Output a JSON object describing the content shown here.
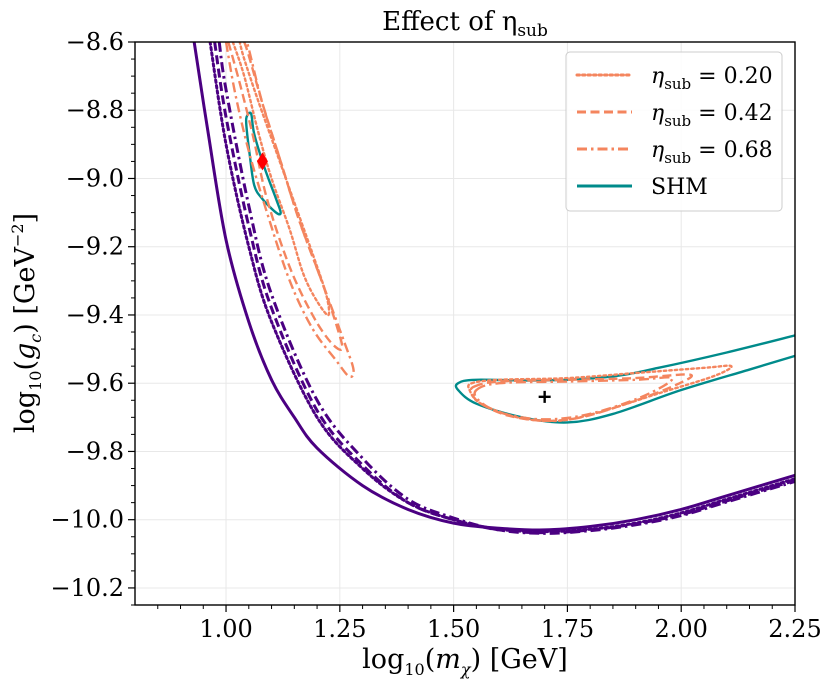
{
  "chart_data": {
    "type": "line",
    "title": "Effect of η",
    "title_sub": "sub",
    "xlabel": {
      "pre": "log",
      "pre_sub": "10",
      "open": "(",
      "var": "m",
      "var_sub": "χ",
      "close": ") [GeV]"
    },
    "ylabel": {
      "pre": "log",
      "pre_sub": "10",
      "open": "(",
      "var": "g",
      "var_sub": "c",
      "close": ") [GeV",
      "exp": "−2",
      "end": "]"
    },
    "xlim": [
      0.8,
      2.25
    ],
    "ylim": [
      -10.25,
      -8.6
    ],
    "xticks": [
      1.0,
      1.25,
      1.5,
      1.75,
      2.0,
      2.25
    ],
    "xtick_labels": [
      "1.00",
      "1.25",
      "1.50",
      "1.75",
      "2.00",
      "2.25"
    ],
    "yticks": [
      -10.2,
      -10.0,
      -9.8,
      -9.6,
      -9.4,
      -9.2,
      -9.0,
      -8.8,
      -8.6
    ],
    "ytick_labels": [
      "−10.2",
      "−10.0",
      "−9.8",
      "−9.6",
      "−9.4",
      "−9.2",
      "−9.0",
      "−8.8",
      "−8.6"
    ],
    "grid": true,
    "legend_position": "top-right",
    "legend": [
      {
        "label_var": "η",
        "label_sub": "sub",
        "label_rest": " = 0.20",
        "color": "#f4855e",
        "dash": "dotted"
      },
      {
        "label_var": "η",
        "label_sub": "sub",
        "label_rest": " = 0.42",
        "color": "#f4855e",
        "dash": "dashed"
      },
      {
        "label_var": "η",
        "label_sub": "sub",
        "label_rest": " = 0.68",
        "color": "#f4855e",
        "dash": "dashdot"
      },
      {
        "label_var": "",
        "label_sub": "",
        "label_rest": "SHM",
        "color": "#008b8b",
        "dash": "solid"
      }
    ],
    "colors": {
      "shm_contour": "#008b8b",
      "eta_contour": "#f4855e",
      "limit": "#4b0082",
      "diamond": "#ff0000",
      "cross": "#000000"
    },
    "markers": [
      {
        "name": "diamond",
        "x": 1.08,
        "y": -8.95
      },
      {
        "name": "cross",
        "x": 1.7,
        "y": -9.64
      }
    ],
    "series": [
      {
        "name": "SHM exclusion limit",
        "color": "#4b0082",
        "dash": "solid",
        "width": 3,
        "points": [
          [
            0.93,
            -8.6
          ],
          [
            0.96,
            -8.86
          ],
          [
            1.0,
            -9.18
          ],
          [
            1.05,
            -9.42
          ],
          [
            1.1,
            -9.59
          ],
          [
            1.15,
            -9.7
          ],
          [
            1.2,
            -9.79
          ],
          [
            1.3,
            -9.9
          ],
          [
            1.4,
            -9.97
          ],
          [
            1.5,
            -10.01
          ],
          [
            1.6,
            -10.025
          ],
          [
            1.7,
            -10.03
          ],
          [
            1.8,
            -10.02
          ],
          [
            1.9,
            -10.0
          ],
          [
            2.0,
            -9.97
          ],
          [
            2.1,
            -9.93
          ],
          [
            2.25,
            -9.87
          ]
        ]
      },
      {
        "name": "η_sub = 0.20 exclusion limit",
        "color": "#4b0082",
        "dash": "dotted",
        "width": 3,
        "points": [
          [
            0.965,
            -8.6
          ],
          [
            1.0,
            -8.9
          ],
          [
            1.05,
            -9.2
          ],
          [
            1.1,
            -9.42
          ],
          [
            1.2,
            -9.7
          ],
          [
            1.3,
            -9.85
          ],
          [
            1.4,
            -9.95
          ],
          [
            1.5,
            -10.0
          ],
          [
            1.6,
            -10.028
          ],
          [
            1.7,
            -10.035
          ],
          [
            1.8,
            -10.028
          ],
          [
            1.9,
            -10.01
          ],
          [
            2.0,
            -9.98
          ],
          [
            2.1,
            -9.94
          ],
          [
            2.25,
            -9.88
          ]
        ]
      },
      {
        "name": "η_sub = 0.42 exclusion limit",
        "color": "#4b0082",
        "dash": "dashed",
        "width": 3,
        "points": [
          [
            0.975,
            -8.6
          ],
          [
            1.0,
            -8.82
          ],
          [
            1.05,
            -9.14
          ],
          [
            1.1,
            -9.38
          ],
          [
            1.2,
            -9.68
          ],
          [
            1.3,
            -9.84
          ],
          [
            1.4,
            -9.95
          ],
          [
            1.5,
            -10.0
          ],
          [
            1.6,
            -10.03
          ],
          [
            1.7,
            -10.038
          ],
          [
            1.8,
            -10.03
          ],
          [
            1.9,
            -10.012
          ],
          [
            2.0,
            -9.985
          ],
          [
            2.1,
            -9.945
          ],
          [
            2.25,
            -9.885
          ]
        ]
      },
      {
        "name": "η_sub = 0.68 exclusion limit",
        "color": "#4b0082",
        "dash": "dashdot",
        "width": 3,
        "points": [
          [
            0.985,
            -8.6
          ],
          [
            1.0,
            -8.74
          ],
          [
            1.05,
            -9.08
          ],
          [
            1.1,
            -9.34
          ],
          [
            1.2,
            -9.65
          ],
          [
            1.3,
            -9.82
          ],
          [
            1.4,
            -9.94
          ],
          [
            1.5,
            -9.995
          ],
          [
            1.6,
            -10.03
          ],
          [
            1.7,
            -10.04
          ],
          [
            1.8,
            -10.032
          ],
          [
            1.9,
            -10.015
          ],
          [
            2.0,
            -9.988
          ],
          [
            2.1,
            -9.948
          ],
          [
            2.25,
            -9.888
          ]
        ]
      },
      {
        "name": "SHM contour (low mass)",
        "color": "#008b8b",
        "dash": "solid",
        "width": 2.4,
        "closed": true,
        "points": [
          [
            1.045,
            -8.82
          ],
          [
            1.055,
            -8.81
          ],
          [
            1.062,
            -8.87
          ],
          [
            1.085,
            -8.97
          ],
          [
            1.11,
            -9.06
          ],
          [
            1.12,
            -9.1
          ],
          [
            1.11,
            -9.1
          ],
          [
            1.08,
            -9.06
          ],
          [
            1.062,
            -9.02
          ],
          [
            1.052,
            -8.93
          ],
          [
            1.045,
            -8.85
          ]
        ]
      },
      {
        "name": "SHM contour (high mass)",
        "color": "#008b8b",
        "dash": "solid",
        "width": 2.4,
        "points": [
          [
            2.25,
            -9.46
          ],
          [
            2.1,
            -9.51
          ],
          [
            1.95,
            -9.555
          ],
          [
            1.85,
            -9.58
          ],
          [
            1.7,
            -9.592
          ],
          [
            1.55,
            -9.59
          ],
          [
            1.51,
            -9.6
          ],
          [
            1.51,
            -9.62
          ],
          [
            1.55,
            -9.66
          ],
          [
            1.65,
            -9.7
          ],
          [
            1.75,
            -9.715
          ],
          [
            1.85,
            -9.69
          ],
          [
            2.0,
            -9.62
          ],
          [
            2.15,
            -9.56
          ],
          [
            2.25,
            -9.52
          ]
        ]
      },
      {
        "name": "η_sub = 0.20 contour (low mass)",
        "color": "#f4855e",
        "dash": "dotted",
        "width": 2.4,
        "points": [
          [
            1.015,
            -8.6
          ],
          [
            1.04,
            -8.7
          ],
          [
            1.07,
            -8.86
          ],
          [
            1.1,
            -9.0
          ],
          [
            1.14,
            -9.15
          ],
          [
            1.17,
            -9.28
          ],
          [
            1.2,
            -9.36
          ],
          [
            1.225,
            -9.4
          ],
          [
            1.22,
            -9.34
          ],
          [
            1.19,
            -9.22
          ],
          [
            1.15,
            -9.07
          ],
          [
            1.11,
            -8.92
          ],
          [
            1.07,
            -8.77
          ],
          [
            1.04,
            -8.65
          ],
          [
            1.03,
            -8.6
          ]
        ]
      },
      {
        "name": "η_sub = 0.42 contour (low mass)",
        "color": "#f4855e",
        "dash": "dashed",
        "width": 2.4,
        "points": [
          [
            1.005,
            -8.6
          ],
          [
            1.03,
            -8.72
          ],
          [
            1.06,
            -8.88
          ],
          [
            1.09,
            -9.06
          ],
          [
            1.14,
            -9.26
          ],
          [
            1.19,
            -9.4
          ],
          [
            1.23,
            -9.48
          ],
          [
            1.255,
            -9.5
          ],
          [
            1.245,
            -9.44
          ],
          [
            1.21,
            -9.3
          ],
          [
            1.16,
            -9.12
          ],
          [
            1.12,
            -8.95
          ],
          [
            1.08,
            -8.78
          ],
          [
            1.05,
            -8.64
          ],
          [
            1.04,
            -8.6
          ]
        ]
      },
      {
        "name": "η_sub = 0.68 contour (low mass)",
        "color": "#f4855e",
        "dash": "dashdot",
        "width": 2.4,
        "points": [
          [
            1.0,
            -8.6
          ],
          [
            1.02,
            -8.75
          ],
          [
            1.05,
            -8.92
          ],
          [
            1.09,
            -9.1
          ],
          [
            1.14,
            -9.3
          ],
          [
            1.19,
            -9.44
          ],
          [
            1.24,
            -9.53
          ],
          [
            1.27,
            -9.58
          ],
          [
            1.28,
            -9.56
          ],
          [
            1.26,
            -9.48
          ],
          [
            1.21,
            -9.3
          ],
          [
            1.16,
            -9.12
          ],
          [
            1.12,
            -8.95
          ],
          [
            1.08,
            -8.78
          ],
          [
            1.05,
            -8.62
          ],
          [
            1.045,
            -8.6
          ]
        ]
      },
      {
        "name": "η_sub = 0.20 contour (high mass)",
        "color": "#f4855e",
        "dash": "dotted",
        "width": 2.4,
        "closed": true,
        "points": [
          [
            1.54,
            -9.6
          ],
          [
            1.6,
            -9.59
          ],
          [
            1.75,
            -9.585
          ],
          [
            1.9,
            -9.57
          ],
          [
            2.05,
            -9.555
          ],
          [
            2.11,
            -9.55
          ],
          [
            2.07,
            -9.58
          ],
          [
            1.95,
            -9.63
          ],
          [
            1.82,
            -9.685
          ],
          [
            1.73,
            -9.71
          ],
          [
            1.64,
            -9.7
          ],
          [
            1.56,
            -9.66
          ],
          [
            1.535,
            -9.62
          ]
        ]
      },
      {
        "name": "η_sub = 0.42 contour (high mass)",
        "color": "#f4855e",
        "dash": "dashed",
        "width": 2.4,
        "closed": true,
        "points": [
          [
            1.545,
            -9.61
          ],
          [
            1.6,
            -9.595
          ],
          [
            1.75,
            -9.59
          ],
          [
            1.9,
            -9.585
          ],
          [
            2.02,
            -9.575
          ],
          [
            1.98,
            -9.61
          ],
          [
            1.88,
            -9.66
          ],
          [
            1.78,
            -9.7
          ],
          [
            1.7,
            -9.71
          ],
          [
            1.62,
            -9.695
          ],
          [
            1.56,
            -9.66
          ],
          [
            1.54,
            -9.63
          ]
        ]
      },
      {
        "name": "η_sub = 0.68 contour (high mass)",
        "color": "#f4855e",
        "dash": "dashdot",
        "width": 2.4,
        "closed": true,
        "points": [
          [
            1.55,
            -9.62
          ],
          [
            1.6,
            -9.6
          ],
          [
            1.75,
            -9.595
          ],
          [
            1.9,
            -9.59
          ],
          [
            1.98,
            -9.585
          ],
          [
            1.93,
            -9.63
          ],
          [
            1.84,
            -9.675
          ],
          [
            1.76,
            -9.7
          ],
          [
            1.68,
            -9.705
          ],
          [
            1.6,
            -9.685
          ],
          [
            1.555,
            -9.65
          ]
        ]
      }
    ]
  }
}
